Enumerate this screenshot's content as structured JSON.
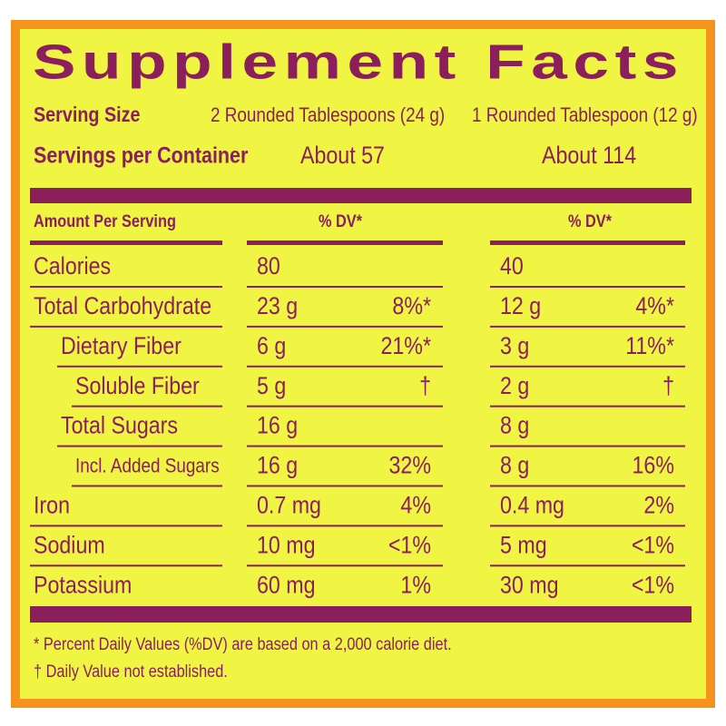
{
  "header": {
    "title": "Supplement Facts",
    "serving_size": {
      "label": "Serving Size",
      "col_1": "2 Rounded Tablespoons (24 g)",
      "col_2": "1 Rounded Tablespoon (12 g)"
    },
    "servings_per_container": {
      "label": "Servings per Container",
      "col_1": "About 57",
      "col_2": "About 114"
    }
  },
  "table": {
    "amount_header": "Amount Per Serving",
    "dv_header_1": "% DV*",
    "dv_header_2": "% DV*",
    "rows": [
      {
        "label": "Calories",
        "amount_1": "80",
        "amount_2": "40"
      },
      {
        "label": "Total Carbohydrate",
        "amount_1": "23 g",
        "dv_1": "8%*",
        "amount_2": "12 g",
        "dv_2": "4%*"
      },
      {
        "label": "Dietary Fiber",
        "amount_1": "6 g",
        "dv_1": "21%*",
        "amount_2": "3 g",
        "dv_2": "11%*"
      },
      {
        "label": "Soluble Fiber",
        "amount_1": "5 g",
        "dv_1": "†",
        "amount_2": "2 g",
        "dv_2": "†"
      },
      {
        "label": "Total Sugars",
        "amount_1": "16 g",
        "amount_2": "8 g"
      },
      {
        "label": "Incl. Added Sugars",
        "amount_1": "16 g",
        "dv_1": "32%",
        "amount_2": "8 g",
        "dv_2": "16%"
      },
      {
        "label": "Iron",
        "amount_1": "0.7 mg",
        "dv_1": "4%",
        "amount_2": "0.4 mg",
        "dv_2": "2%"
      },
      {
        "label": "Sodium",
        "amount_1": "10 mg",
        "dv_1": "<1%",
        "amount_2": "5 mg",
        "dv_2": "<1%"
      },
      {
        "label": "Potassium",
        "amount_1": "60 mg",
        "dv_1": "1%",
        "amount_2": "30 mg",
        "dv_2": "<1%"
      }
    ]
  },
  "footnotes": [
    "* Percent Daily Values (%DV) are based on a 2,000 calorie diet.",
    "† Daily Value not established."
  ]
}
